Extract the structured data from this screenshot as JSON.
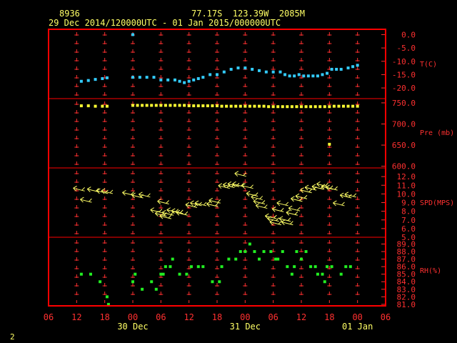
{
  "header": {
    "station_id": "8936",
    "location": "77.17S  123.39W  2085M",
    "time_range": "29 Dec 2014/120000UTC - 01 Jan 2015/000000UTC"
  },
  "footer": {
    "page_number": "2"
  },
  "colors": {
    "background": "#000000",
    "frame": "#ff0000",
    "ticks": "#ff3030",
    "axis_text": "#ff3030",
    "header_text": "#ffff66",
    "time_labels": "#ffff66",
    "temperature": "#33ccff",
    "pressure": "#ffff33",
    "wind": "#ffff66",
    "rh": "#22ee22"
  },
  "chart_data": {
    "type": "scatter",
    "x_axis": {
      "unit": "hours since 29 Dec 06UTC",
      "ticks": [
        {
          "x": 0,
          "label": "06"
        },
        {
          "x": 6,
          "label": "12"
        },
        {
          "x": 12,
          "label": "18"
        },
        {
          "x": 18,
          "label": "00"
        },
        {
          "x": 24,
          "label": "06"
        },
        {
          "x": 30,
          "label": "12"
        },
        {
          "x": 36,
          "label": "18"
        },
        {
          "x": 42,
          "label": "00"
        },
        {
          "x": 48,
          "label": "06"
        },
        {
          "x": 54,
          "label": "12"
        },
        {
          "x": 60,
          "label": "18"
        },
        {
          "x": 66,
          "label": "00"
        },
        {
          "x": 72,
          "label": "06"
        }
      ],
      "day_labels": [
        {
          "x": 18,
          "label": "30 Dec"
        },
        {
          "x": 42,
          "label": "31 Dec"
        },
        {
          "x": 66,
          "label": "01 Jan"
        }
      ],
      "range": [
        0,
        72
      ]
    },
    "panels": [
      {
        "name": "temperature",
        "label": "T(C)",
        "ylim": [
          -24,
          2
        ],
        "ticks": [
          {
            "v": 0,
            "label": "0.0"
          },
          {
            "v": -5,
            "label": "-5.0"
          },
          {
            "v": -10,
            "label": "-10.0"
          },
          {
            "v": -15,
            "label": "-15.0"
          },
          {
            "v": -20,
            "label": "-20.0"
          }
        ],
        "points": [
          [
            18,
            0
          ],
          [
            7,
            -17.5
          ],
          [
            8.5,
            -17.2
          ],
          [
            10,
            -16.8
          ],
          [
            11.5,
            -16.5
          ],
          [
            12.5,
            -16.2
          ],
          [
            18,
            -16
          ],
          [
            19.5,
            -16
          ],
          [
            21,
            -16
          ],
          [
            22.5,
            -16
          ],
          [
            24,
            -17
          ],
          [
            25.5,
            -17
          ],
          [
            27,
            -17
          ],
          [
            28,
            -17.5
          ],
          [
            29,
            -18
          ],
          [
            30,
            -17.5
          ],
          [
            31,
            -17
          ],
          [
            32,
            -16.5
          ],
          [
            33,
            -16
          ],
          [
            34.5,
            -15
          ],
          [
            36,
            -15
          ],
          [
            37.5,
            -14
          ],
          [
            39,
            -13
          ],
          [
            40.5,
            -12.5
          ],
          [
            42,
            -12.5
          ],
          [
            43.5,
            -13
          ],
          [
            45,
            -13.5
          ],
          [
            46.5,
            -14
          ],
          [
            48,
            -14
          ],
          [
            49.5,
            -14
          ],
          [
            50.5,
            -15
          ],
          [
            51.5,
            -15.5
          ],
          [
            52.5,
            -15.5
          ],
          [
            53.5,
            -15
          ],
          [
            54.5,
            -15.5
          ],
          [
            55.5,
            -15.5
          ],
          [
            56.5,
            -15.5
          ],
          [
            57.5,
            -15.5
          ],
          [
            58.5,
            -15
          ],
          [
            59.5,
            -14.5
          ],
          [
            60.5,
            -13
          ],
          [
            61.5,
            -13
          ],
          [
            62.5,
            -13
          ],
          [
            64,
            -12.5
          ],
          [
            65,
            -12
          ],
          [
            66,
            -11.5
          ]
        ]
      },
      {
        "name": "pressure",
        "label": "Pre (mb)",
        "ylim": [
          596,
          760
        ],
        "ticks": [
          {
            "v": 750,
            "label": "750.0"
          },
          {
            "v": 700,
            "label": "700.0"
          },
          {
            "v": 650,
            "label": "650.0"
          },
          {
            "v": 600,
            "label": "600.0"
          }
        ],
        "points": [
          [
            7,
            743
          ],
          [
            8.5,
            743
          ],
          [
            10,
            742
          ],
          [
            11.5,
            742
          ],
          [
            12.5,
            742
          ],
          [
            18,
            744
          ],
          [
            19,
            744
          ],
          [
            20,
            744
          ],
          [
            21,
            744
          ],
          [
            22,
            744
          ],
          [
            23,
            744
          ],
          [
            24,
            744
          ],
          [
            25,
            744
          ],
          [
            26,
            744
          ],
          [
            27,
            744
          ],
          [
            28,
            744
          ],
          [
            29,
            744
          ],
          [
            30,
            743
          ],
          [
            31,
            743
          ],
          [
            32,
            743
          ],
          [
            33,
            743
          ],
          [
            34,
            743
          ],
          [
            35,
            743
          ],
          [
            36,
            743
          ],
          [
            37,
            742
          ],
          [
            38,
            742
          ],
          [
            39,
            742
          ],
          [
            40,
            742
          ],
          [
            41,
            742
          ],
          [
            42,
            742
          ],
          [
            43,
            742
          ],
          [
            44,
            742
          ],
          [
            45,
            742
          ],
          [
            46,
            742
          ],
          [
            47,
            741
          ],
          [
            48,
            741
          ],
          [
            49,
            741
          ],
          [
            50,
            741
          ],
          [
            51,
            741
          ],
          [
            52,
            741
          ],
          [
            53,
            741
          ],
          [
            54,
            741
          ],
          [
            55,
            741
          ],
          [
            56,
            741
          ],
          [
            57,
            741
          ],
          [
            58,
            741
          ],
          [
            59,
            741
          ],
          [
            60,
            741
          ],
          [
            61,
            742
          ],
          [
            62,
            742
          ],
          [
            63,
            742
          ],
          [
            64,
            742
          ],
          [
            65,
            742
          ],
          [
            66,
            742
          ],
          [
            60,
            652
          ]
        ]
      },
      {
        "name": "wind",
        "label": "SPD(MPS)",
        "ylim": [
          5,
          13
        ],
        "ticks": [
          {
            "v": 12,
            "label": "12.0"
          },
          {
            "v": 11,
            "label": "11.0"
          },
          {
            "v": 10,
            "label": "10.0"
          },
          {
            "v": 9,
            "label": "9.0"
          },
          {
            "v": 8,
            "label": "8.0"
          },
          {
            "v": 7,
            "label": "7.0"
          },
          {
            "v": 6,
            "label": "6.0"
          },
          {
            "v": 5,
            "label": "5.0"
          }
        ],
        "points": [
          [
            6.5,
            10.5
          ],
          [
            9.5,
            10.4
          ],
          [
            11.5,
            10.2
          ],
          [
            12.5,
            10.2
          ],
          [
            8,
            9.2
          ],
          [
            17,
            10.0
          ],
          [
            19,
            9.7
          ],
          [
            20.5,
            9.8
          ],
          [
            23,
            8.0
          ],
          [
            24,
            7.6
          ],
          [
            25,
            7.3
          ],
          [
            25.5,
            7.7
          ],
          [
            26.5,
            8.0
          ],
          [
            27.5,
            7.9
          ],
          [
            28.5,
            7.7
          ],
          [
            24.5,
            9.0
          ],
          [
            30.5,
            8.6
          ],
          [
            31.5,
            8.8
          ],
          [
            32.5,
            8.8
          ],
          [
            35,
            8.7
          ],
          [
            35.5,
            9.1
          ],
          [
            37.5,
            10.8
          ],
          [
            38.5,
            10.9
          ],
          [
            39.5,
            11.0
          ],
          [
            40.5,
            11.0
          ],
          [
            41,
            12.2
          ],
          [
            42.5,
            10.8
          ],
          [
            43.5,
            9.9
          ],
          [
            44.5,
            9.5
          ],
          [
            45,
            9.0
          ],
          [
            45.5,
            8.5
          ],
          [
            47.5,
            7.3
          ],
          [
            48,
            7.0
          ],
          [
            48.5,
            6.6
          ],
          [
            49,
            8.1
          ],
          [
            50,
            8.8
          ],
          [
            50.5,
            7.0
          ],
          [
            51,
            6.6
          ],
          [
            52,
            7.7
          ],
          [
            52.5,
            8.2
          ],
          [
            53,
            9.3
          ],
          [
            54,
            9.6
          ],
          [
            55,
            10.3
          ],
          [
            56,
            10.6
          ],
          [
            57.5,
            10.7
          ],
          [
            58.5,
            11.0
          ],
          [
            59.5,
            10.7
          ],
          [
            60.5,
            10.6
          ],
          [
            62,
            8.8
          ],
          [
            63.5,
            9.7
          ],
          [
            64.5,
            9.8
          ]
        ]
      },
      {
        "name": "rh",
        "label": "RH(%)",
        "ylim": [
          80.8,
          89.9
        ],
        "ticks": [
          {
            "v": 89,
            "label": "89.0"
          },
          {
            "v": 88,
            "label": "88.0"
          },
          {
            "v": 87,
            "label": "87.0"
          },
          {
            "v": 86,
            "label": "86.0"
          },
          {
            "v": 85,
            "label": "85.0"
          },
          {
            "v": 84,
            "label": "84.0"
          },
          {
            "v": 83,
            "label": "83.0"
          },
          {
            "v": 82,
            "label": "82.0"
          },
          {
            "v": 81,
            "label": "81.0"
          }
        ],
        "points": [
          [
            7,
            85
          ],
          [
            9,
            85
          ],
          [
            11,
            84
          ],
          [
            12.5,
            82
          ],
          [
            12.8,
            81
          ],
          [
            18,
            84
          ],
          [
            18.5,
            85
          ],
          [
            20,
            83
          ],
          [
            22,
            84
          ],
          [
            23,
            83
          ],
          [
            24,
            85
          ],
          [
            24.5,
            85
          ],
          [
            25,
            86
          ],
          [
            26,
            86
          ],
          [
            26.5,
            87
          ],
          [
            28,
            85
          ],
          [
            29.5,
            85
          ],
          [
            30.5,
            86
          ],
          [
            32,
            86
          ],
          [
            33,
            86
          ],
          [
            35,
            84
          ],
          [
            36.5,
            84
          ],
          [
            37,
            86
          ],
          [
            38.5,
            87
          ],
          [
            40,
            87
          ],
          [
            41,
            88
          ],
          [
            42,
            88
          ],
          [
            43,
            89
          ],
          [
            44,
            88
          ],
          [
            45,
            87
          ],
          [
            46,
            88
          ],
          [
            47.5,
            88
          ],
          [
            48.5,
            87
          ],
          [
            49,
            87
          ],
          [
            50,
            88
          ],
          [
            51,
            86
          ],
          [
            52,
            85
          ],
          [
            52.5,
            86
          ],
          [
            53,
            88
          ],
          [
            54,
            87
          ],
          [
            55,
            88
          ],
          [
            56,
            86
          ],
          [
            57,
            86
          ],
          [
            57.5,
            85
          ],
          [
            58.5,
            85
          ],
          [
            59,
            84
          ],
          [
            59.5,
            86
          ],
          [
            60.5,
            86
          ],
          [
            62.5,
            85
          ],
          [
            63.5,
            86
          ],
          [
            64.5,
            86
          ]
        ]
      }
    ]
  }
}
